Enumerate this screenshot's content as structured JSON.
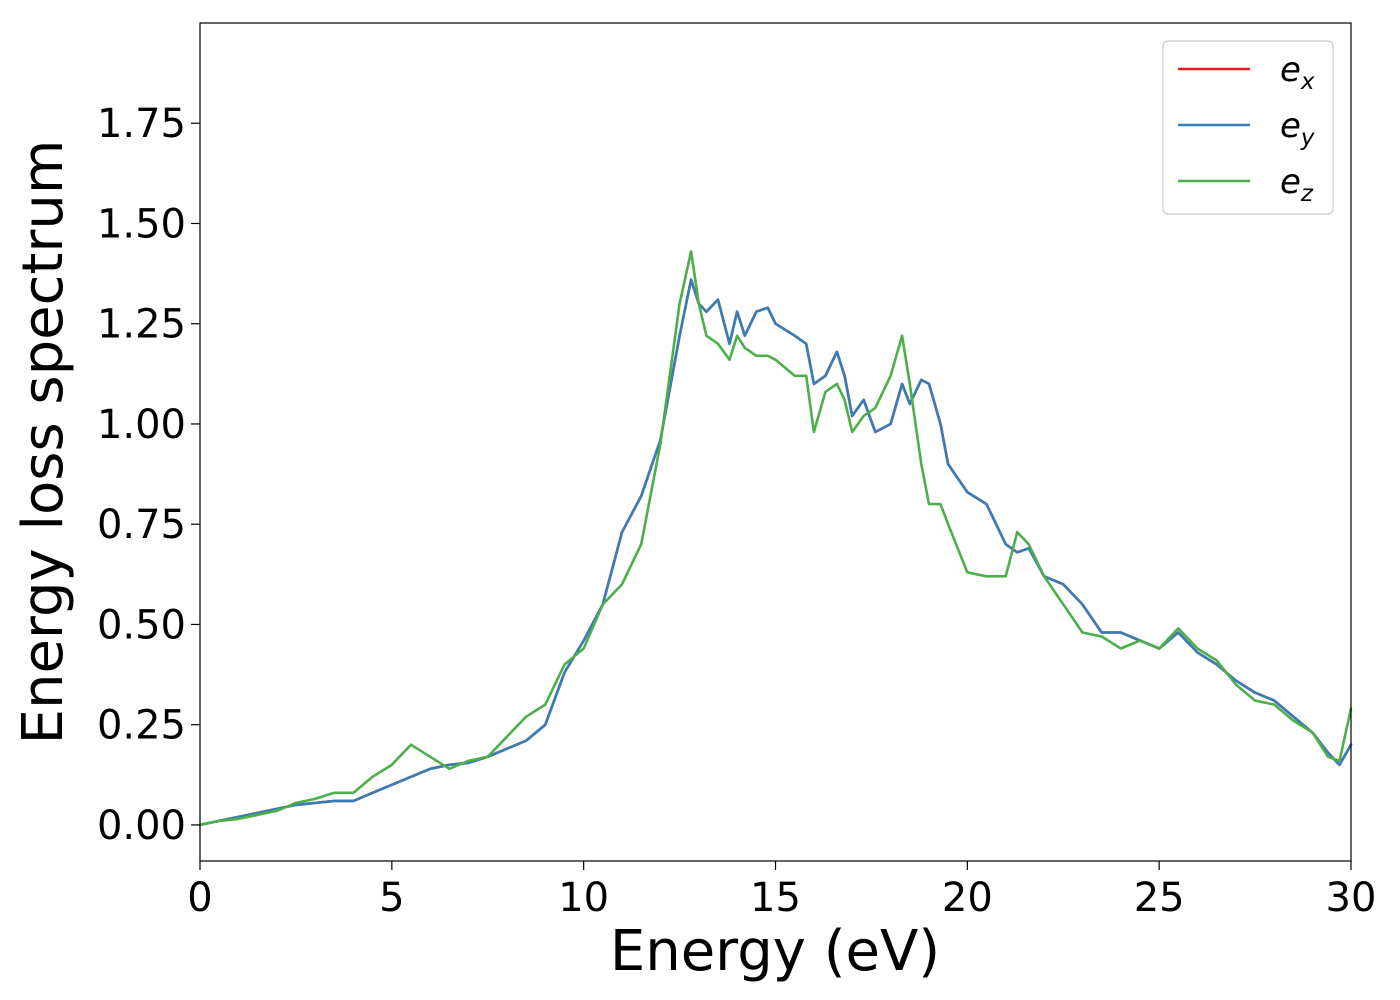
{
  "chart_data": {
    "type": "line",
    "xlabel": "Energy (eV)",
    "ylabel": "Energy loss spectrum",
    "xlim": [
      0,
      30
    ],
    "ylim": [
      -0.09,
      2.0
    ],
    "xticks": [
      0,
      5,
      10,
      15,
      20,
      25,
      30
    ],
    "xtick_labels": [
      "0",
      "5",
      "10",
      "15",
      "20",
      "25",
      "30"
    ],
    "yticks": [
      0.0,
      0.25,
      0.5,
      0.75,
      1.0,
      1.25,
      1.5,
      1.75
    ],
    "ytick_labels": [
      "0.00",
      "0.25",
      "0.50",
      "0.75",
      "1.00",
      "1.25",
      "1.50",
      "1.75"
    ],
    "grid": false,
    "legend_position": "top-right",
    "legend": [
      {
        "base": "e",
        "sub": "x",
        "color": "#e41a1c"
      },
      {
        "base": "e",
        "sub": "y",
        "color": "#377eb8"
      },
      {
        "base": "e",
        "sub": "z",
        "color": "#4daf4a"
      }
    ],
    "x": [
      0,
      0.5,
      1,
      1.5,
      2,
      2.5,
      3,
      3.5,
      4,
      4.5,
      5,
      5.5,
      6,
      6.5,
      7,
      7.5,
      8,
      8.5,
      9,
      9.5,
      10,
      10.5,
      11,
      11.5,
      12,
      12.5,
      12.8,
      13,
      13.2,
      13.5,
      13.8,
      14,
      14.2,
      14.5,
      14.8,
      15,
      15.5,
      15.8,
      16,
      16.3,
      16.6,
      16.8,
      17,
      17.3,
      17.6,
      18,
      18.3,
      18.5,
      18.8,
      19,
      19.3,
      19.5,
      20,
      20.5,
      21,
      21.3,
      21.6,
      22,
      22.5,
      23,
      23.5,
      24,
      24.5,
      25,
      25.5,
      26,
      26.5,
      27,
      27.5,
      28,
      28.5,
      29,
      29.4,
      29.7,
      30
    ],
    "series": [
      {
        "name": "e_x",
        "color": "#e41a1c",
        "values": [
          0.0,
          0.01,
          0.02,
          0.03,
          0.04,
          0.05,
          0.055,
          0.06,
          0.06,
          0.08,
          0.1,
          0.12,
          0.14,
          0.15,
          0.155,
          0.17,
          0.19,
          0.21,
          0.25,
          0.38,
          0.46,
          0.55,
          0.73,
          0.82,
          0.96,
          1.22,
          1.36,
          1.3,
          1.28,
          1.31,
          1.2,
          1.28,
          1.22,
          1.28,
          1.29,
          1.25,
          1.22,
          1.2,
          1.1,
          1.12,
          1.18,
          1.12,
          1.02,
          1.06,
          0.98,
          1.0,
          1.1,
          1.05,
          1.11,
          1.1,
          1.0,
          0.9,
          0.83,
          0.8,
          0.7,
          0.68,
          0.69,
          0.62,
          0.6,
          0.55,
          0.48,
          0.48,
          0.46,
          0.44,
          0.48,
          0.43,
          0.4,
          0.36,
          0.33,
          0.31,
          0.27,
          0.23,
          0.18,
          0.15,
          0.2
        ]
      },
      {
        "name": "e_y",
        "color": "#377eb8",
        "values": [
          0.0,
          0.01,
          0.02,
          0.03,
          0.04,
          0.05,
          0.055,
          0.06,
          0.06,
          0.08,
          0.1,
          0.12,
          0.14,
          0.15,
          0.155,
          0.17,
          0.19,
          0.21,
          0.25,
          0.38,
          0.46,
          0.55,
          0.73,
          0.82,
          0.96,
          1.22,
          1.36,
          1.3,
          1.28,
          1.31,
          1.2,
          1.28,
          1.22,
          1.28,
          1.29,
          1.25,
          1.22,
          1.2,
          1.1,
          1.12,
          1.18,
          1.12,
          1.02,
          1.06,
          0.98,
          1.0,
          1.1,
          1.05,
          1.11,
          1.1,
          1.0,
          0.9,
          0.83,
          0.8,
          0.7,
          0.68,
          0.69,
          0.62,
          0.6,
          0.55,
          0.48,
          0.48,
          0.46,
          0.44,
          0.48,
          0.43,
          0.4,
          0.36,
          0.33,
          0.31,
          0.27,
          0.23,
          0.18,
          0.15,
          0.2
        ]
      },
      {
        "name": "e_z",
        "color": "#4daf4a",
        "values": [
          0.0,
          0.01,
          0.015,
          0.025,
          0.035,
          0.055,
          0.065,
          0.08,
          0.08,
          0.12,
          0.15,
          0.2,
          0.17,
          0.14,
          0.16,
          0.17,
          0.22,
          0.27,
          0.3,
          0.4,
          0.44,
          0.55,
          0.6,
          0.7,
          0.95,
          1.3,
          1.43,
          1.3,
          1.22,
          1.2,
          1.16,
          1.22,
          1.19,
          1.17,
          1.17,
          1.16,
          1.12,
          1.12,
          0.98,
          1.08,
          1.1,
          1.06,
          0.98,
          1.02,
          1.04,
          1.12,
          1.22,
          1.1,
          0.9,
          0.8,
          0.8,
          0.75,
          0.63,
          0.62,
          0.62,
          0.73,
          0.7,
          0.62,
          0.55,
          0.48,
          0.47,
          0.44,
          0.46,
          0.44,
          0.49,
          0.44,
          0.41,
          0.35,
          0.31,
          0.3,
          0.26,
          0.23,
          0.17,
          0.16,
          0.29
        ]
      }
    ]
  }
}
